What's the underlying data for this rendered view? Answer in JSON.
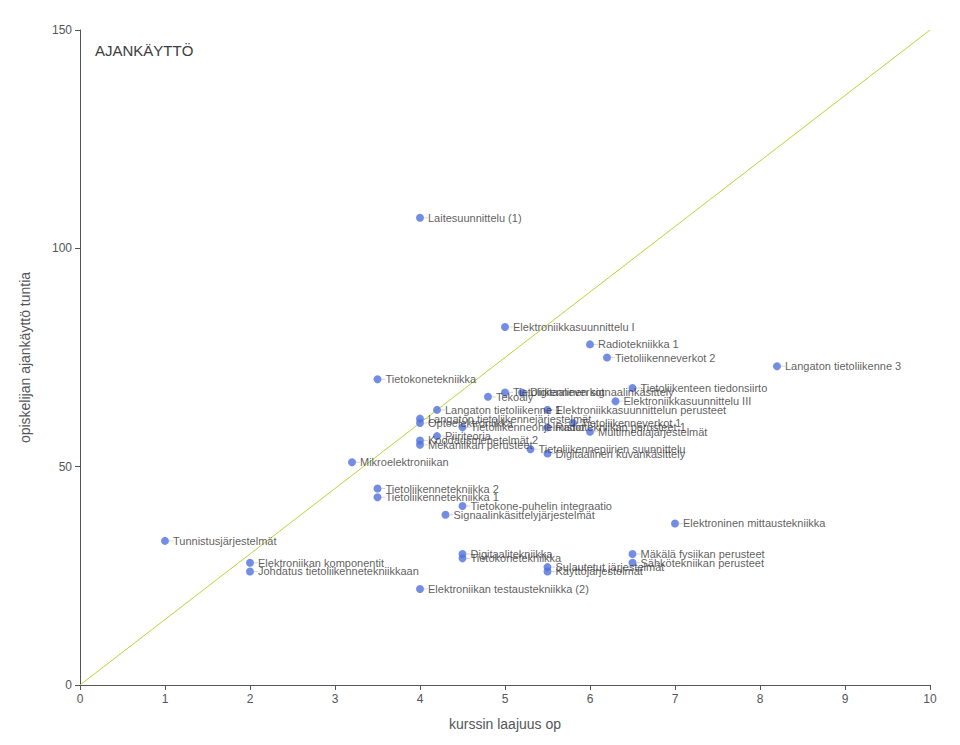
{
  "chart_data": {
    "type": "scatter",
    "title": "AJANKÄYTTÖ",
    "xlabel": "kurssin laajuus op",
    "ylabel": "opiskelijan ajankäyttö tuntia",
    "xlim": [
      0,
      10
    ],
    "ylim": [
      0,
      150
    ],
    "xticks": [
      0,
      1,
      2,
      3,
      4,
      5,
      6,
      7,
      8,
      9,
      10
    ],
    "yticks": [
      0,
      50,
      100,
      150
    ],
    "grid": false,
    "series": [
      {
        "type": "scatter",
        "marker": "circle",
        "x": [
          4.0,
          5.0,
          6.0,
          6.2,
          8.2,
          3.5,
          6.5,
          5.0,
          5.2,
          4.8,
          6.3,
          4.2,
          5.5,
          4.0,
          4.0,
          5.8,
          4.5,
          5.5,
          6.0,
          4.2,
          4.0,
          4.0,
          5.3,
          5.5,
          3.2,
          3.5,
          3.5,
          4.5,
          4.3,
          7.0,
          1.0,
          4.5,
          6.5,
          4.5,
          6.5,
          2.0,
          5.5,
          2.0,
          5.5,
          4.0
        ],
        "values": [
          107,
          82,
          78,
          75,
          73,
          70,
          68,
          67,
          67,
          66,
          65,
          63,
          63,
          61,
          60,
          60,
          59,
          59,
          58,
          57,
          56,
          55,
          54,
          53,
          51,
          45,
          43,
          41,
          39,
          37,
          33,
          30,
          30,
          29,
          28,
          28,
          27,
          26,
          26,
          22
        ],
        "labels": [
          "Laitesuunnittelu (1)",
          "Elektroniikkasuunnittelu I",
          "Radiotekniikka 1",
          "Tietoliikenneverkot 2",
          "Langaton tietoliikenne 3",
          "Tietokonetekniikka",
          "Tietoliikenteen tiedonsiirto",
          "Tietoliikenneverkot",
          "Digitaalinen signaalinkäsittely",
          "Tekoaly",
          "Elektroniikkasuunnittelu III",
          "Langaton tietoliikenne 1",
          "Elektroniikkasuunnittelun perusteet",
          "Langaton tietoliikennejärjestelmät",
          "Optoelektroniikka",
          "Tietoliikenneverkot 1",
          "Tietoliikenneohjelmistot",
          "Radiotekniikan perusteet 1",
          "Multimediajärjestelmät",
          "Piiriteoria",
          "Koodausmenetelmät 2",
          "Mekaniikan perusteet",
          "Tietoliikennepiirien suunnittelu",
          "Digitaalinen kuvankäsittely",
          "Mikroelektroniikan",
          "Tietoliikennetekniikka 2",
          "Tietoliikennetekniikka 1",
          "Tietokone-puhelin integraatio",
          "Signaalinkäsittelyjärjestelmät",
          "Elektroninen mittaustekniikka",
          "Tunnistusjärjestelmät",
          "Digitaalitekniikka",
          "Mäkälä fysiikan perusteet",
          "Tietokonetekniikka",
          "Sähkötekniikan perusteet",
          "Elektroniikan komponentit",
          "Sulautetut järjestelmät",
          "Johdatus tietoliikennetekniikkaan",
          "Käyttöjärjestelmät",
          "Elektroniikan testaustekniikka (2)"
        ]
      },
      {
        "type": "line",
        "x": [
          0,
          10
        ],
        "values": [
          0,
          150
        ]
      }
    ]
  }
}
